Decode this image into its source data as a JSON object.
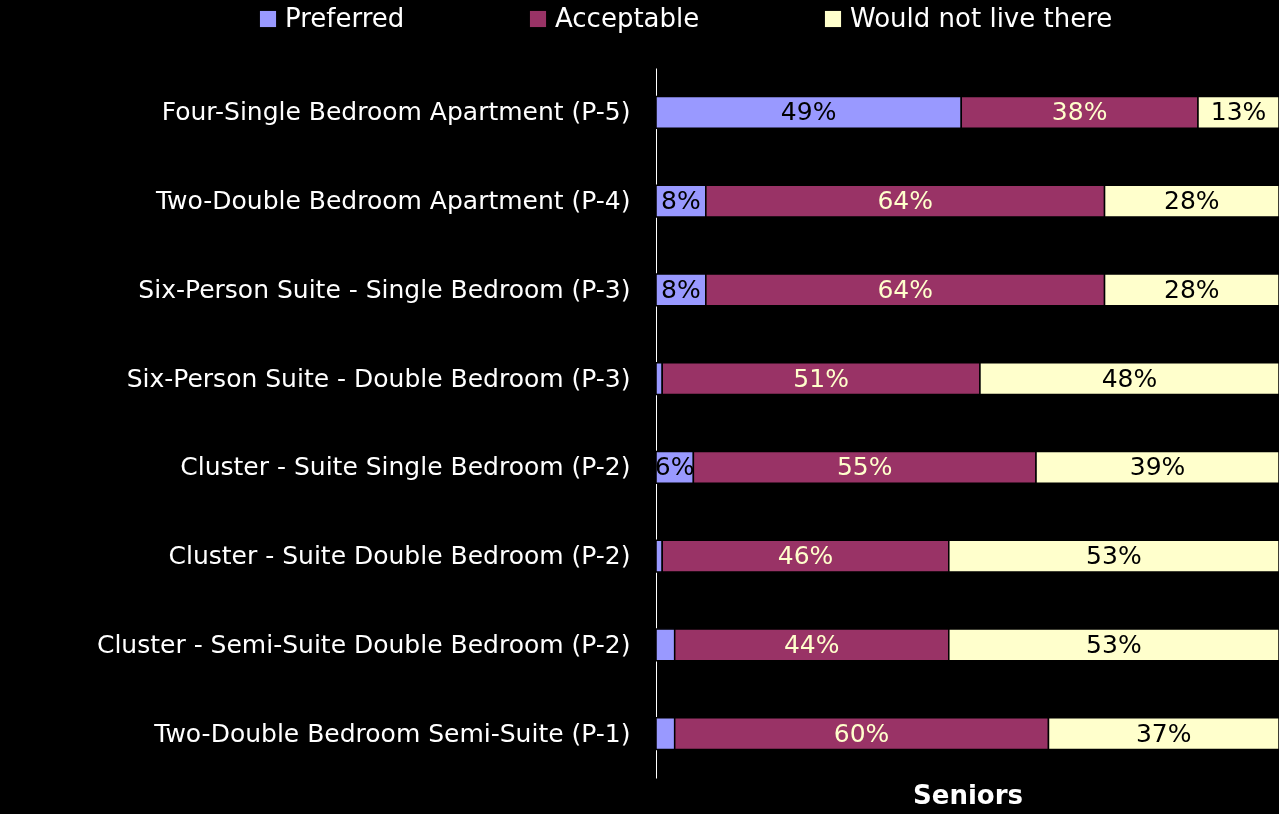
{
  "chart_data": {
    "type": "bar",
    "orientation": "horizontal",
    "stacked": true,
    "xlabel": "Seniors",
    "legend": "top",
    "categories": [
      "Four-Single Bedroom Apartment (P-5)",
      "Two-Double Bedroom Apartment (P-4)",
      "Six-Person Suite - Single Bedroom (P-3)",
      "Six-Person Suite - Double Bedroom (P-3)",
      "Cluster - Suite Single Bedroom (P-2)",
      "Cluster - Suite Double Bedroom (P-2)",
      "Cluster - Semi-Suite Double Bedroom (P-2)",
      "Two-Double Bedroom Semi-Suite (P-1)"
    ],
    "series": [
      {
        "name": "Preferred",
        "color": "#9999ff",
        "values": [
          49,
          8,
          8,
          1,
          6,
          1,
          3,
          3
        ],
        "value_labels": [
          "49%",
          "8%",
          "8%",
          null,
          "6%",
          null,
          null,
          null
        ]
      },
      {
        "name": "Acceptable",
        "color": "#993366",
        "values": [
          38,
          64,
          64,
          51,
          55,
          46,
          44,
          60
        ],
        "value_labels": [
          "38%",
          "64%",
          "64%",
          "51%",
          "55%",
          "46%",
          "44%",
          "60%"
        ]
      },
      {
        "name": "Would not live there",
        "color": "#ffffcc",
        "values": [
          13,
          28,
          28,
          48,
          39,
          53,
          53,
          37
        ],
        "value_labels": [
          "13%",
          "28%",
          "28%",
          "48%",
          "39%",
          "53%",
          "53%",
          "37%"
        ]
      }
    ]
  }
}
